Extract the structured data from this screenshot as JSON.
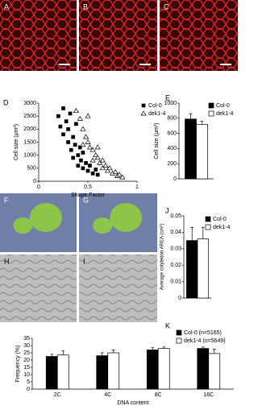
{
  "images": [
    "A",
    "B",
    "C",
    "F",
    "G",
    "H",
    "I"
  ],
  "chart_data": [
    {
      "type": "scatter",
      "panel": "D",
      "ylabel": "Cell size (μm²)",
      "xlabel": "Shape Factor",
      "xlim": [
        0,
        1
      ],
      "xticks": [
        0,
        0.5,
        1
      ],
      "ylim": [
        0,
        3000
      ],
      "yticks": [
        0,
        500,
        1000,
        1500,
        2000,
        2500,
        3000
      ],
      "series": [
        {
          "name": "Col-0",
          "color": "#000000",
          "marker": "square",
          "x": [
            0.2,
            0.22,
            0.25,
            0.25,
            0.28,
            0.3,
            0.3,
            0.32,
            0.33,
            0.35,
            0.35,
            0.37,
            0.38,
            0.4,
            0.4,
            0.42,
            0.43,
            0.45,
            0.45,
            0.48,
            0.5,
            0.52,
            0.55,
            0.58,
            0.6
          ],
          "values": [
            2500,
            2100,
            2800,
            1800,
            2300,
            1500,
            2000,
            2600,
            1200,
            1700,
            900,
            1400,
            2200,
            1000,
            600,
            1300,
            800,
            1100,
            500,
            700,
            400,
            600,
            300,
            450,
            250
          ]
        },
        {
          "name": "dek1-4",
          "color": "#ffffff",
          "marker": "triangle",
          "x": [
            0.38,
            0.42,
            0.45,
            0.48,
            0.5,
            0.52,
            0.55,
            0.55,
            0.58,
            0.6,
            0.62,
            0.65,
            0.65,
            0.68,
            0.7,
            0.72,
            0.75,
            0.78,
            0.8,
            0.82,
            0.85,
            0.5,
            0.45,
            0.6
          ],
          "values": [
            2700,
            2400,
            2000,
            1700,
            1500,
            1300,
            1200,
            800,
            1000,
            900,
            700,
            800,
            500,
            600,
            400,
            500,
            300,
            350,
            200,
            250,
            150,
            2500,
            1400,
            1300
          ]
        }
      ]
    },
    {
      "type": "bar",
      "panel": "E",
      "ylabel": "Cell size (μm²)",
      "categories": [
        null
      ],
      "ylim": [
        0,
        1000
      ],
      "yticks": [
        0,
        200,
        400,
        600,
        800,
        1000
      ],
      "series": [
        {
          "name": "Col-0",
          "color": "#000000",
          "values": [
            790
          ],
          "errors": [
            70
          ]
        },
        {
          "name": "dek1-4",
          "color": "#ffffff",
          "values": [
            720
          ],
          "errors": [
            40
          ]
        }
      ]
    },
    {
      "type": "bar",
      "panel": "J",
      "ylabel": "Average cotyledon AREA (cm²)",
      "categories": [
        null
      ],
      "ylim": [
        0,
        0.05
      ],
      "yticks": [
        0,
        0.01,
        0.02,
        0.03,
        0.04,
        0.05
      ],
      "series": [
        {
          "name": "Col-0",
          "color": "#000000",
          "values": [
            0.035
          ],
          "errors": [
            0.008
          ]
        },
        {
          "name": "dek1-4",
          "color": "#ffffff",
          "values": [
            0.036
          ],
          "errors": [
            0.007
          ]
        }
      ]
    },
    {
      "type": "bar",
      "panel": "K",
      "ylabel": "Frequency (%)",
      "xlabel": "DNA content",
      "categories": [
        "2C",
        "4C",
        "8C",
        "16C"
      ],
      "ylim": [
        0,
        35
      ],
      "yticks": [
        0,
        5,
        10,
        15,
        20,
        25,
        30,
        35
      ],
      "series": [
        {
          "name": "Col-0 (n=5165)",
          "color": "#000000",
          "values": [
            22.5,
            23,
            27,
            28
          ],
          "errors": [
            1.5,
            2,
            1.5,
            1
          ]
        },
        {
          "name": "dek1-4 (n=5649)",
          "color": "#ffffff",
          "values": [
            23.5,
            25,
            28,
            24.5
          ],
          "errors": [
            3,
            2,
            1,
            3
          ]
        }
      ]
    }
  ]
}
